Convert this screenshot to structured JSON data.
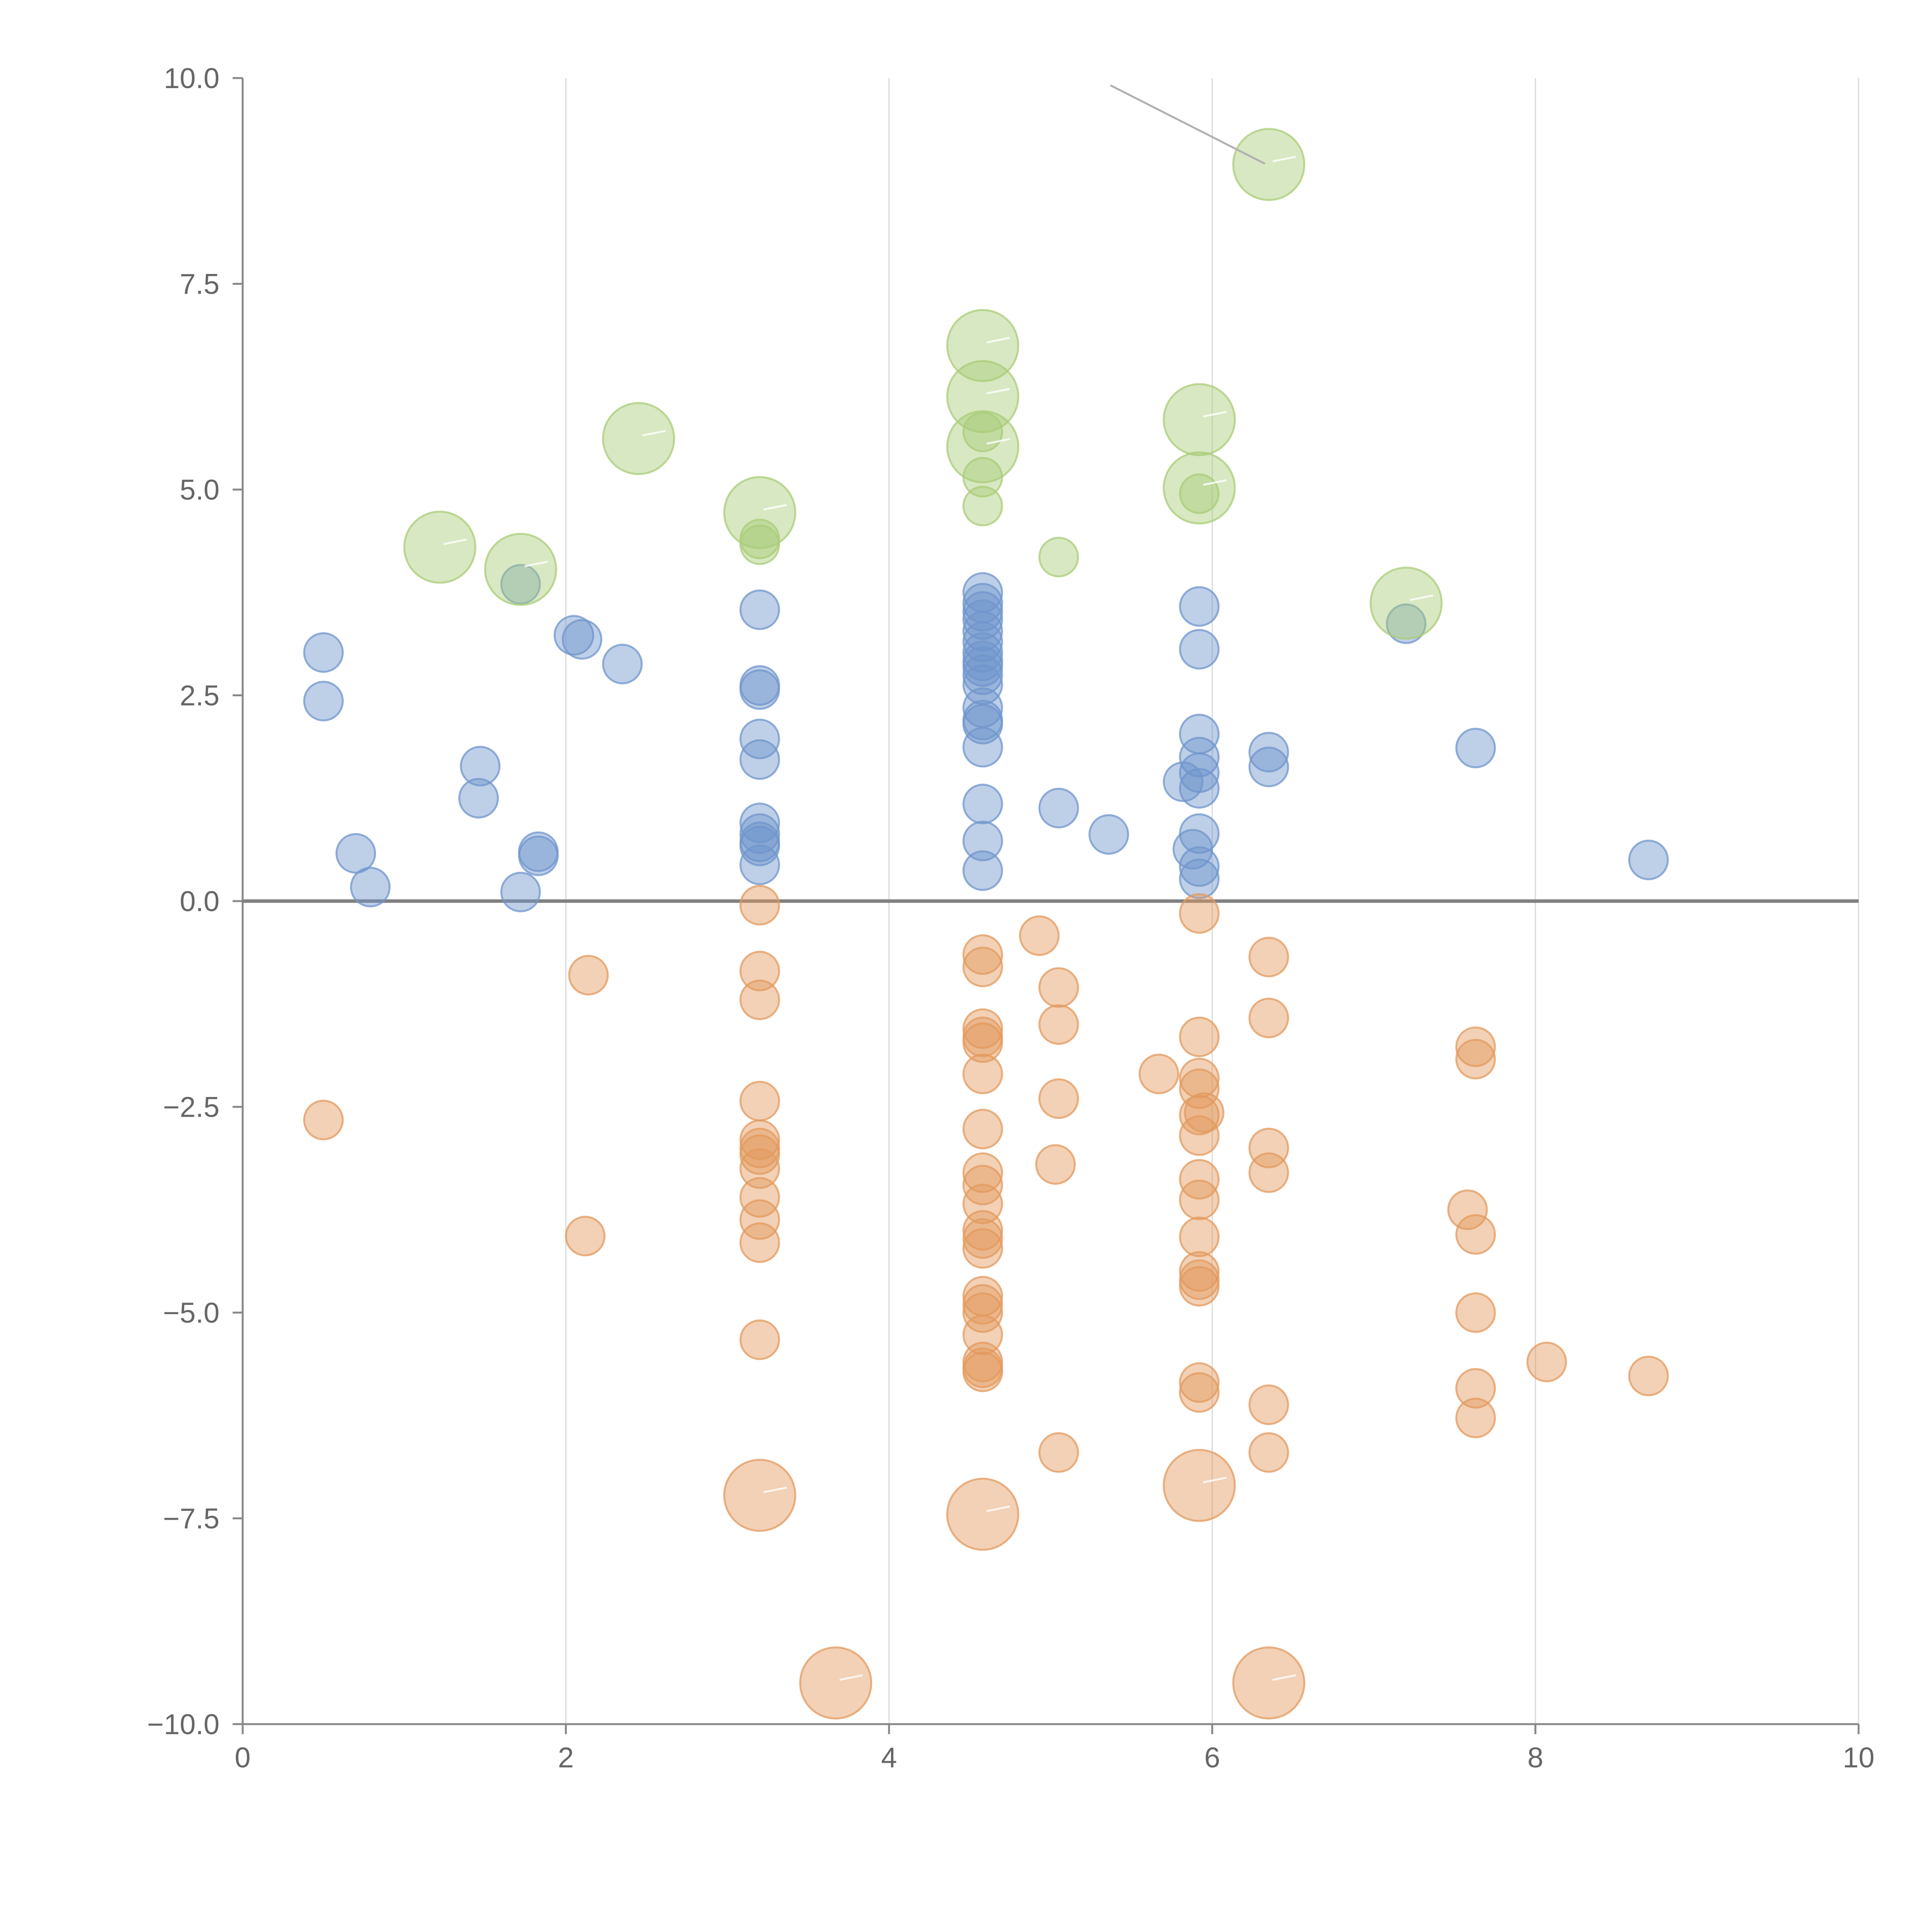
{
  "chart_data": {
    "type": "scatter",
    "title": "",
    "xlabel": "",
    "ylabel": "",
    "xlim": [
      0,
      10
    ],
    "ylim": [
      -10,
      10
    ],
    "x_ticks": [
      0,
      2,
      4,
      6,
      8,
      10
    ],
    "x_tick_labels": [
      "0",
      "2",
      "4",
      "6",
      "8",
      "10"
    ],
    "y_ticks": [
      10,
      7.5,
      5,
      2.5,
      0,
      -2.5,
      -5,
      -7.5,
      -10
    ],
    "y_tick_labels": [
      "10.0",
      "7.5",
      "5.0",
      "2.5",
      "0.0",
      "−2.5",
      "−5.0",
      "−7.5",
      "−10.0"
    ],
    "vertical_grid": true,
    "horizontal_grid": false,
    "reference_line_y": 0,
    "legend": "none",
    "colors": {
      "blue": "#6f95cc",
      "orange": "#e39a5d",
      "green": "#a9cc77"
    },
    "series": [
      {
        "color": "blue",
        "size": "small",
        "points": [
          [
            0.5,
            3.02
          ],
          [
            0.5,
            2.43
          ],
          [
            1.47,
            1.64
          ],
          [
            1.46,
            1.25
          ],
          [
            0.7,
            0.58
          ],
          [
            0.79,
            0.17
          ],
          [
            1.72,
            3.85
          ],
          [
            2.05,
            3.23
          ],
          [
            2.1,
            3.18
          ],
          [
            2.35,
            2.88
          ],
          [
            1.83,
            0.6
          ],
          [
            1.83,
            0.55
          ],
          [
            1.72,
            0.11
          ],
          [
            3.2,
            3.54
          ],
          [
            3.2,
            2.62
          ],
          [
            3.2,
            2.57
          ],
          [
            3.2,
            1.97
          ],
          [
            3.2,
            1.72
          ],
          [
            3.2,
            0.95
          ],
          [
            3.2,
            0.82
          ],
          [
            3.2,
            0.72
          ],
          [
            3.2,
            0.67
          ],
          [
            3.2,
            0.44
          ],
          [
            4.58,
            3.75
          ],
          [
            4.58,
            3.62
          ],
          [
            4.58,
            3.52
          ],
          [
            4.58,
            3.42
          ],
          [
            4.58,
            3.28
          ],
          [
            4.58,
            3.15
          ],
          [
            4.58,
            3.02
          ],
          [
            4.58,
            2.92
          ],
          [
            4.58,
            2.85
          ],
          [
            4.58,
            2.75
          ],
          [
            4.58,
            2.63
          ],
          [
            4.58,
            2.35
          ],
          [
            4.58,
            2.2
          ],
          [
            4.58,
            2.15
          ],
          [
            4.58,
            1.87
          ],
          [
            4.58,
            1.18
          ],
          [
            4.58,
            0.73
          ],
          [
            4.58,
            0.37
          ],
          [
            5.05,
            1.13
          ],
          [
            5.36,
            0.81
          ],
          [
            5.92,
            3.58
          ],
          [
            5.92,
            3.06
          ],
          [
            5.92,
            2.03
          ],
          [
            5.92,
            1.75
          ],
          [
            5.92,
            1.56
          ],
          [
            5.92,
            1.37
          ],
          [
            5.82,
            1.45
          ],
          [
            5.92,
            0.82
          ],
          [
            5.88,
            0.63
          ],
          [
            5.92,
            0.42
          ],
          [
            5.92,
            0.27
          ],
          [
            6.35,
            1.81
          ],
          [
            6.35,
            1.63
          ],
          [
            7.2,
            3.37
          ],
          [
            7.63,
            1.86
          ],
          [
            8.7,
            0.5
          ]
        ]
      },
      {
        "color": "orange",
        "size": "small",
        "points": [
          [
            0.5,
            -2.66
          ],
          [
            2.14,
            -0.9
          ],
          [
            2.12,
            -4.07
          ],
          [
            3.2,
            -0.05
          ],
          [
            3.2,
            -0.85
          ],
          [
            3.2,
            -1.2
          ],
          [
            3.2,
            -2.43
          ],
          [
            3.2,
            -2.9
          ],
          [
            3.2,
            -3.0
          ],
          [
            3.2,
            -3.08
          ],
          [
            3.2,
            -3.25
          ],
          [
            3.2,
            -3.6
          ],
          [
            3.2,
            -3.87
          ],
          [
            3.2,
            -4.15
          ],
          [
            3.2,
            -5.33
          ],
          [
            4.58,
            -0.65
          ],
          [
            4.58,
            -0.8
          ],
          [
            4.58,
            -1.55
          ],
          [
            4.58,
            -1.65
          ],
          [
            4.58,
            -1.72
          ],
          [
            4.58,
            -2.1
          ],
          [
            4.58,
            -2.77
          ],
          [
            4.58,
            -3.3
          ],
          [
            4.58,
            -3.45
          ],
          [
            4.58,
            -3.68
          ],
          [
            4.58,
            -4.0
          ],
          [
            4.58,
            -4.1
          ],
          [
            4.58,
            -4.22
          ],
          [
            4.58,
            -4.8
          ],
          [
            4.58,
            -4.9
          ],
          [
            4.58,
            -5.0
          ],
          [
            4.58,
            -5.27
          ],
          [
            4.58,
            -5.6
          ],
          [
            4.58,
            -5.67
          ],
          [
            4.58,
            -5.72
          ],
          [
            4.93,
            -0.42
          ],
          [
            5.05,
            -1.05
          ],
          [
            5.05,
            -1.5
          ],
          [
            5.05,
            -2.4
          ],
          [
            5.03,
            -3.2
          ],
          [
            5.05,
            -6.7
          ],
          [
            5.67,
            -2.1
          ],
          [
            5.92,
            -0.15
          ],
          [
            5.92,
            -1.65
          ],
          [
            5.92,
            -2.15
          ],
          [
            5.92,
            -2.28
          ],
          [
            5.92,
            -2.6
          ],
          [
            5.95,
            -2.57
          ],
          [
            5.92,
            -2.85
          ],
          [
            5.92,
            -3.38
          ],
          [
            5.92,
            -3.63
          ],
          [
            5.92,
            -4.08
          ],
          [
            5.92,
            -4.5
          ],
          [
            5.92,
            -4.6
          ],
          [
            5.92,
            -4.68
          ],
          [
            5.92,
            -5.85
          ],
          [
            5.92,
            -5.97
          ],
          [
            6.35,
            -0.68
          ],
          [
            6.35,
            -1.42
          ],
          [
            6.35,
            -3.0
          ],
          [
            6.35,
            -3.3
          ],
          [
            6.35,
            -6.12
          ],
          [
            6.35,
            -6.7
          ],
          [
            7.58,
            -3.75
          ],
          [
            7.63,
            -1.77
          ],
          [
            7.63,
            -1.92
          ],
          [
            7.63,
            -4.05
          ],
          [
            7.63,
            -5.0
          ],
          [
            7.63,
            -5.92
          ],
          [
            7.63,
            -6.28
          ],
          [
            8.07,
            -5.6
          ],
          [
            8.7,
            -5.77
          ]
        ]
      },
      {
        "color": "orange",
        "size": "large",
        "points": [
          [
            3.2,
            -7.22
          ],
          [
            4.58,
            -7.45
          ],
          [
            5.92,
            -7.1
          ],
          [
            3.67,
            -9.5
          ],
          [
            6.35,
            -9.5
          ]
        ]
      },
      {
        "color": "green",
        "size": "large",
        "points": [
          [
            1.22,
            4.3
          ],
          [
            1.72,
            4.03
          ],
          [
            2.45,
            5.62
          ],
          [
            3.2,
            4.72
          ],
          [
            4.58,
            6.75
          ],
          [
            4.58,
            6.13
          ],
          [
            4.58,
            5.52
          ],
          [
            5.92,
            5.85
          ],
          [
            5.92,
            5.02
          ],
          [
            6.35,
            8.95
          ],
          [
            7.2,
            3.62
          ]
        ]
      },
      {
        "color": "green",
        "size": "small",
        "points": [
          [
            3.2,
            4.4
          ],
          [
            3.2,
            4.33
          ],
          [
            4.58,
            5.7
          ],
          [
            4.58,
            5.15
          ],
          [
            4.58,
            4.8
          ],
          [
            5.05,
            4.18
          ],
          [
            5.92,
            4.95
          ]
        ]
      }
    ]
  }
}
